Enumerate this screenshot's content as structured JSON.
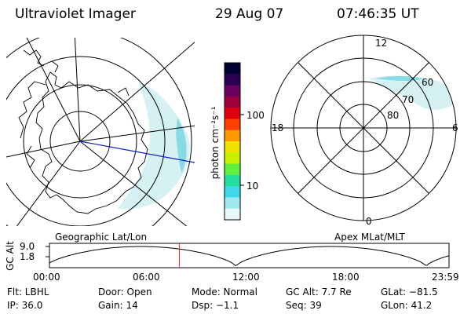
{
  "header": {
    "title": "Ultraviolet Imager",
    "date": "29 Aug 07",
    "time": "07:46:35 UT"
  },
  "left_panel": {
    "caption": "Geographic Lat/Lon",
    "colors": {
      "grid": "#000000",
      "meridian": "#0000cc",
      "aurora": "#bfeef0"
    }
  },
  "right_panel": {
    "caption": "Apex MLat/MLT",
    "mlt_labels": {
      "top": "12",
      "left": "18",
      "right": "6",
      "bottom": "0"
    },
    "lat_labels": [
      "60",
      "70",
      "80"
    ]
  },
  "colorbar": {
    "unit": "photon cm⁻²s⁻¹",
    "ticks": [
      "100",
      "10"
    ],
    "colors": [
      "#000030",
      "#2a0055",
      "#6a0060",
      "#a0003a",
      "#e00010",
      "#ff4000",
      "#ff9a00",
      "#f2e200",
      "#c8f000",
      "#60f040",
      "#20e0a0",
      "#40d8e8",
      "#a0e8f0",
      "#e8f8f8"
    ]
  },
  "altitude_plot": {
    "ylabel": "GC Alt",
    "yticks": [
      "9.0",
      "1.8"
    ],
    "xticks": [
      "00:00",
      "06:00",
      "12:00",
      "18:00",
      "23:59"
    ],
    "current_time_fraction": 0.325,
    "marker_color": "#e0202a"
  },
  "status": {
    "flt": "Flt: LBHL",
    "door": "Door: Open",
    "mode": "Mode: Normal",
    "gc_alt": "GC Alt: 7.7 Re",
    "glat": "GLat: −81.5",
    "ip": "IP: 36.0",
    "gain": "Gain: 14",
    "dsp": "Dsp:   −1.1",
    "seq": "Seq: 39",
    "glon": "GLon:  41.2"
  }
}
